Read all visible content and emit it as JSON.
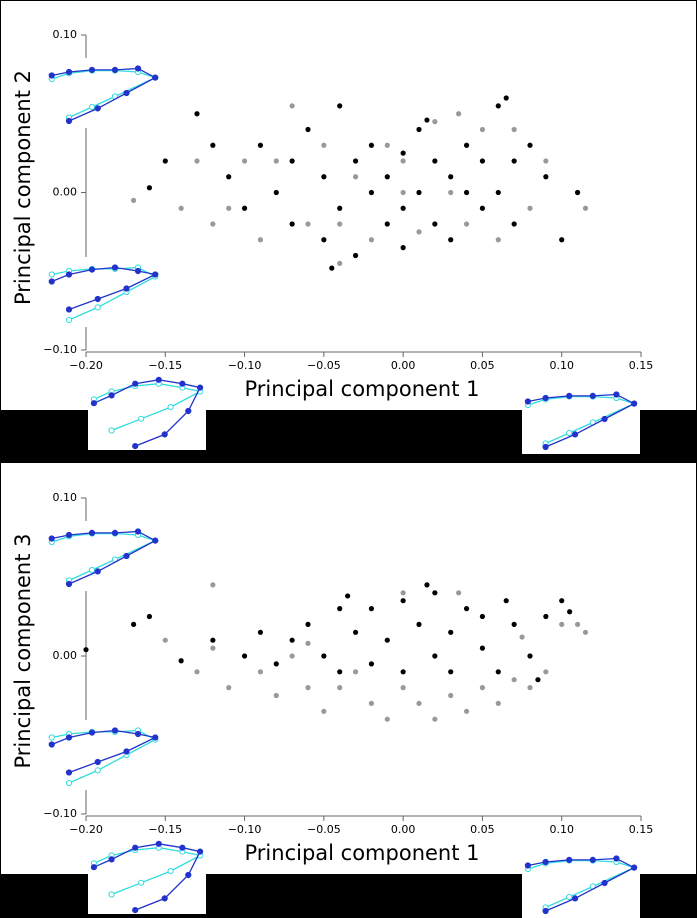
{
  "chart_data": [
    {
      "type": "scatter",
      "xlabel": "Principal component 1",
      "ylabel": "Principal component 2",
      "xlim": [
        -0.2,
        0.15
      ],
      "ylim": [
        -0.1,
        0.1
      ],
      "xticks": [
        {
          "value": -0.2,
          "label": "−0.20"
        },
        {
          "value": -0.15,
          "label": "−0.15"
        },
        {
          "value": -0.1,
          "label": "−0.10"
        },
        {
          "value": -0.05,
          "label": "−0.05"
        },
        {
          "value": 0,
          "label": "0.00"
        },
        {
          "value": 0.05,
          "label": "0.05"
        },
        {
          "value": 0.1,
          "label": "0.10"
        },
        {
          "value": 0.15,
          "label": "0.15"
        }
      ],
      "yticks": [
        {
          "value": -0.1,
          "label": "−0.10"
        },
        {
          "value": 0,
          "label": "0.00"
        },
        {
          "value": 0.1,
          "label": "0.10"
        }
      ],
      "series": [
        {
          "color": "#999999",
          "x": [
            -0.17,
            -0.14,
            -0.13,
            -0.12,
            -0.11,
            -0.09,
            -0.08,
            -0.07,
            -0.06,
            -0.05,
            -0.04,
            -0.03,
            -0.02,
            -0.01,
            0.0,
            0.01,
            0.02,
            0.03,
            0.04,
            0.05,
            0.06,
            0.07,
            0.08,
            0.09,
            0.11,
            0.115,
            -0.04,
            0.035,
            -0.1,
            0.0
          ],
          "values": [
            -0.005,
            -0.01,
            0.02,
            -0.02,
            -0.01,
            -0.03,
            0.02,
            0.055,
            -0.02,
            0.03,
            -0.02,
            0.01,
            -0.03,
            0.03,
            0.0,
            -0.025,
            0.045,
            0.0,
            -0.02,
            0.04,
            -0.03,
            0.04,
            -0.01,
            0.02,
            0.0,
            -0.01,
            -0.045,
            0.05,
            0.02,
            0.02
          ]
        },
        {
          "color": "#000000",
          "x": [
            -0.15,
            -0.13,
            -0.12,
            -0.11,
            -0.1,
            -0.09,
            -0.08,
            -0.07,
            -0.07,
            -0.06,
            -0.05,
            -0.05,
            -0.04,
            -0.04,
            -0.03,
            -0.03,
            -0.02,
            -0.02,
            -0.01,
            -0.01,
            0.0,
            0.0,
            0.0,
            0.01,
            0.01,
            0.02,
            0.02,
            0.03,
            0.03,
            0.04,
            0.04,
            0.05,
            0.05,
            0.06,
            0.06,
            0.07,
            0.07,
            0.08,
            0.09,
            0.1,
            0.11,
            -0.16,
            0.065,
            -0.045,
            0.015
          ],
          "values": [
            0.02,
            0.05,
            0.03,
            0.01,
            -0.01,
            0.03,
            0.0,
            0.02,
            -0.02,
            0.04,
            0.01,
            -0.03,
            0.055,
            -0.01,
            0.02,
            -0.04,
            0.0,
            0.03,
            -0.02,
            0.01,
            0.025,
            -0.01,
            -0.035,
            0.0,
            0.04,
            -0.02,
            0.02,
            0.01,
            -0.03,
            0.0,
            0.03,
            -0.01,
            0.02,
            0.0,
            0.055,
            0.02,
            -0.02,
            0.03,
            0.01,
            -0.03,
            0.0,
            0.003,
            0.06,
            -0.048,
            0.046
          ]
        }
      ]
    },
    {
      "type": "scatter",
      "xlabel": "Principal component 1",
      "ylabel": "Principal component 3",
      "xlim": [
        -0.2,
        0.15
      ],
      "ylim": [
        -0.1,
        0.1
      ],
      "xticks": [
        {
          "value": -0.2,
          "label": "−0.20"
        },
        {
          "value": -0.15,
          "label": "−0.15"
        },
        {
          "value": -0.1,
          "label": "−0.10"
        },
        {
          "value": -0.05,
          "label": "−0.05"
        },
        {
          "value": 0,
          "label": "0.00"
        },
        {
          "value": 0.05,
          "label": "0.05"
        },
        {
          "value": 0.1,
          "label": "0.10"
        },
        {
          "value": 0.15,
          "label": "0.15"
        }
      ],
      "yticks": [
        {
          "value": -0.1,
          "label": "−0.10"
        },
        {
          "value": 0,
          "label": "0.00"
        },
        {
          "value": 0.1,
          "label": "0.10"
        }
      ],
      "series": [
        {
          "color": "#999999",
          "x": [
            -0.15,
            -0.13,
            -0.12,
            -0.11,
            -0.09,
            -0.08,
            -0.07,
            -0.06,
            -0.05,
            -0.04,
            -0.03,
            -0.02,
            -0.01,
            0.0,
            0.01,
            0.02,
            0.03,
            0.04,
            0.05,
            0.06,
            0.07,
            0.08,
            0.09,
            0.1,
            0.11,
            0.115,
            -0.12,
            0.0,
            0.035,
            0.075,
            -0.06
          ],
          "values": [
            0.01,
            -0.01,
            0.005,
            -0.02,
            -0.01,
            -0.025,
            0.0,
            -0.02,
            -0.035,
            -0.02,
            -0.01,
            -0.03,
            -0.04,
            -0.02,
            -0.03,
            -0.04,
            -0.025,
            -0.035,
            -0.02,
            -0.03,
            -0.015,
            -0.02,
            -0.01,
            0.02,
            0.02,
            0.015,
            0.045,
            0.04,
            0.04,
            0.012,
            0.008
          ]
        },
        {
          "color": "#000000",
          "x": [
            -0.2,
            -0.17,
            -0.16,
            -0.14,
            -0.12,
            -0.1,
            -0.09,
            -0.08,
            -0.07,
            -0.06,
            -0.05,
            -0.04,
            -0.04,
            -0.03,
            -0.02,
            -0.02,
            -0.01,
            0.0,
            0.0,
            0.01,
            0.02,
            0.02,
            0.03,
            0.03,
            0.04,
            0.05,
            0.05,
            0.06,
            0.07,
            0.08,
            0.09,
            0.1,
            0.105,
            -0.035,
            0.015,
            0.065,
            0.085
          ],
          "values": [
            0.004,
            0.02,
            0.025,
            -0.003,
            0.01,
            0.0,
            0.015,
            -0.005,
            0.01,
            0.02,
            0.0,
            0.03,
            -0.01,
            0.015,
            -0.005,
            0.03,
            0.01,
            0.035,
            -0.01,
            0.02,
            0.0,
            0.04,
            0.015,
            -0.01,
            0.03,
            0.005,
            0.025,
            -0.01,
            0.02,
            0.0,
            0.025,
            0.035,
            0.028,
            0.038,
            0.045,
            0.035,
            -0.015
          ]
        }
      ]
    }
  ]
}
